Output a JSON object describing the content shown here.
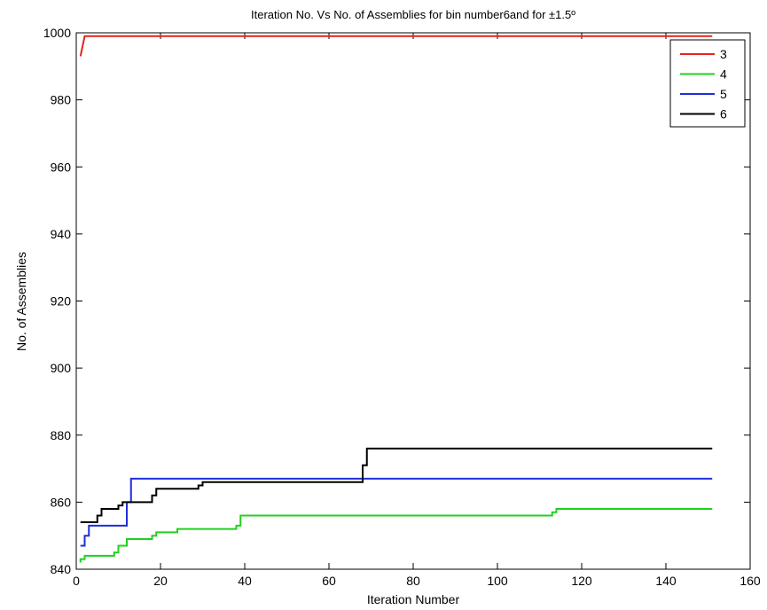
{
  "chart_data": {
    "type": "line",
    "title": "Iteration No. Vs No. of Assemblies for bin number6and for ±1.5º",
    "xlabel": "Iteration Number",
    "ylabel": "No. of Assemblies",
    "xlim": [
      0,
      160
    ],
    "ylim": [
      840,
      1000
    ],
    "xticks": [
      0,
      20,
      40,
      60,
      80,
      100,
      120,
      140,
      160
    ],
    "yticks": [
      840,
      860,
      880,
      900,
      920,
      940,
      960,
      980,
      1000
    ],
    "grid": false,
    "legend_position": "top-right",
    "series": [
      {
        "name": "3",
        "color": "#e8231c",
        "x": [
          1,
          1.5,
          2,
          2,
          151
        ],
        "y": [
          993,
          996,
          999,
          999,
          999
        ]
      },
      {
        "name": "4",
        "color": "#20d020",
        "x": [
          1,
          1,
          2,
          2,
          9,
          9,
          10,
          10,
          12,
          12,
          18,
          18,
          19,
          19,
          23,
          23,
          24,
          24,
          38,
          38,
          39,
          39,
          113,
          113,
          114,
          114,
          151
        ],
        "y": [
          842,
          843,
          843,
          844,
          844,
          845,
          845,
          847,
          847,
          849,
          849,
          850,
          850,
          851,
          851,
          851,
          851,
          852,
          852,
          853,
          853,
          856,
          856,
          857,
          857,
          858,
          858
        ]
      },
      {
        "name": "5",
        "color": "#1e2fd8",
        "x": [
          1,
          2,
          2,
          3,
          3,
          12,
          12,
          13,
          13,
          151
        ],
        "y": [
          847,
          847,
          850,
          850,
          853,
          853,
          860,
          860,
          867,
          867
        ]
      },
      {
        "name": "6",
        "color": "#000000",
        "x": [
          1,
          5,
          5,
          6,
          6,
          10,
          10,
          11,
          11,
          18,
          18,
          19,
          19,
          29,
          29,
          30,
          30,
          68,
          68,
          69,
          69,
          151
        ],
        "y": [
          854,
          854,
          856,
          856,
          858,
          858,
          859,
          859,
          860,
          860,
          862,
          862,
          864,
          864,
          865,
          865,
          866,
          866,
          871,
          871,
          876,
          876
        ]
      }
    ]
  }
}
